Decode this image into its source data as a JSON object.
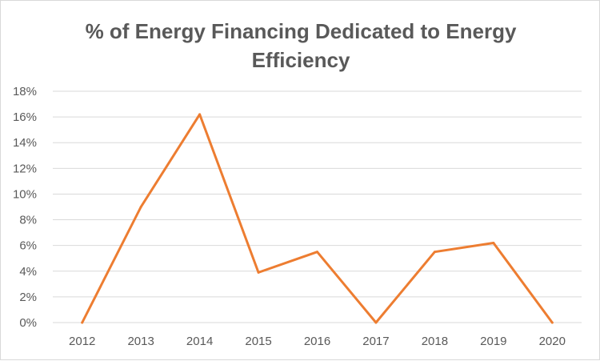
{
  "chart_data": {
    "type": "line",
    "title_lines": [
      "% of Energy Financing Dedicated to Energy",
      "Efficiency"
    ],
    "xlabel": "",
    "ylabel": "",
    "categories": [
      "2012",
      "2013",
      "2014",
      "2015",
      "2016",
      "2017",
      "2018",
      "2019",
      "2020"
    ],
    "series": [
      {
        "values": [
          0,
          9.0,
          16.2,
          3.9,
          5.5,
          0,
          5.5,
          6.2,
          0
        ],
        "color": "#ED7D31"
      }
    ],
    "ylim": [
      0,
      18
    ],
    "yticks": [
      "0%",
      "2%",
      "4%",
      "6%",
      "8%",
      "10%",
      "12%",
      "14%",
      "16%",
      "18%"
    ],
    "y_unit": "percent",
    "grid": "horizontal",
    "legend": "none",
    "colors": {
      "gridline": "#d9d9d9",
      "text": "#595959",
      "line": "#ED7D31"
    }
  }
}
